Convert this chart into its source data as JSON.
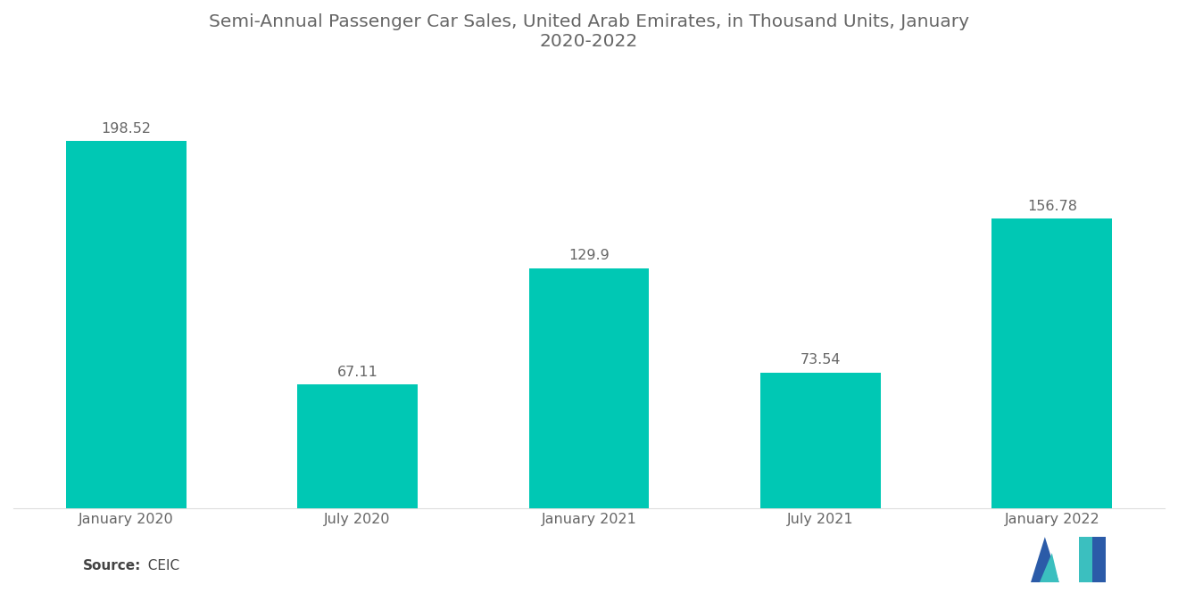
{
  "title": "Semi-Annual Passenger Car Sales, United Arab Emirates, in Thousand Units, January\n2020-2022",
  "categories": [
    "January 2020",
    "July 2020",
    "January 2021",
    "July 2021",
    "January 2022"
  ],
  "values": [
    198.52,
    67.11,
    129.9,
    73.54,
    156.78
  ],
  "bar_color": "#00C8B4",
  "background_color": "#ffffff",
  "title_fontsize": 14.5,
  "label_fontsize": 11.5,
  "annotation_fontsize": 11.5,
  "source_bold": "Source:",
  "source_normal": "  CEIC",
  "ylim": [
    0,
    235
  ],
  "bar_width": 0.52,
  "title_color": "#666666",
  "tick_color": "#666666",
  "annotation_color": "#666666"
}
